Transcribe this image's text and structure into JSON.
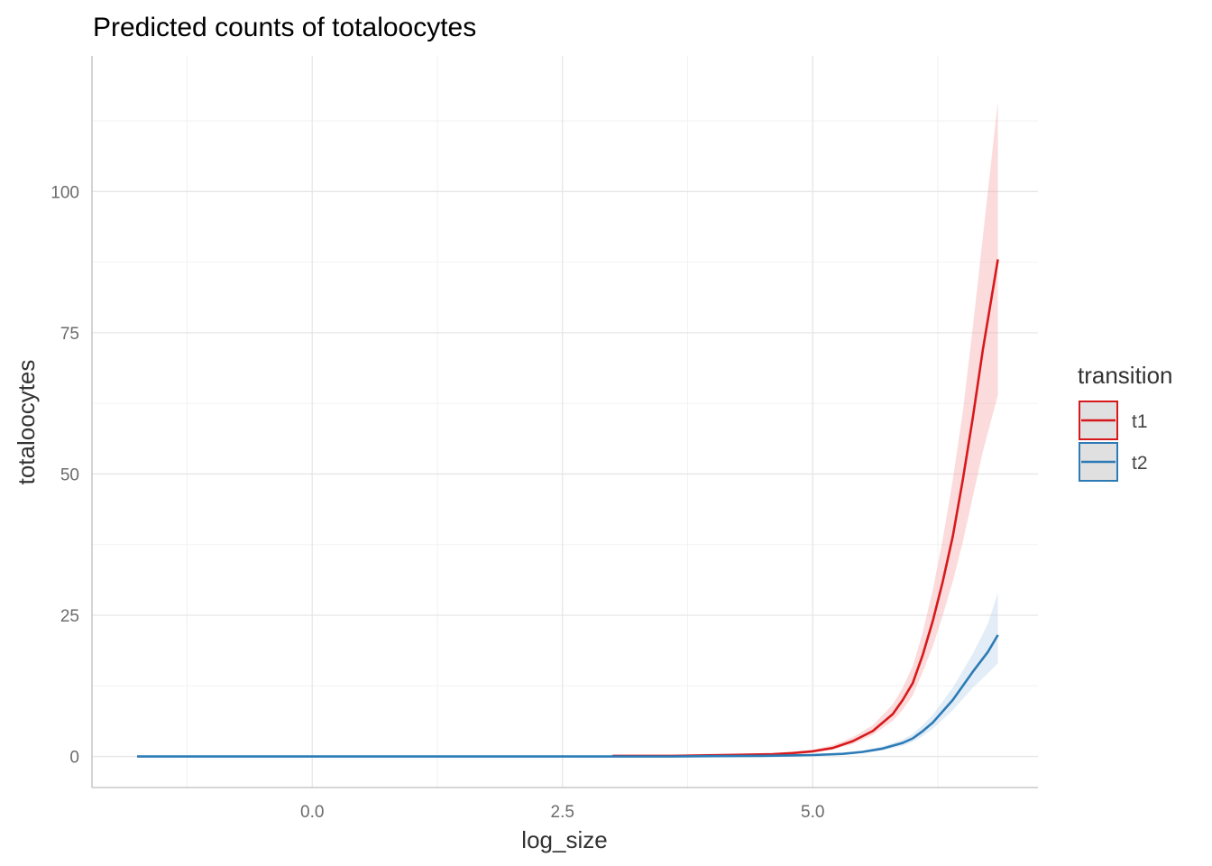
{
  "chart_data": {
    "type": "line",
    "title": "Predicted counts of totaloocytes",
    "xlabel": "log_size",
    "ylabel": "totaloocytes",
    "xlim": [
      -2.2,
      7.25
    ],
    "ylim": [
      -5.5,
      124
    ],
    "x_ticks": [
      0.0,
      2.5,
      5.0
    ],
    "x_tick_labels": [
      "0.0",
      "2.5",
      "5.0"
    ],
    "y_ticks": [
      0,
      25,
      50,
      75,
      100
    ],
    "y_tick_labels": [
      "0",
      "25",
      "50",
      "75",
      "100"
    ],
    "grid": true,
    "legend": {
      "title": "transition",
      "position": "right"
    },
    "series": [
      {
        "name": "t1",
        "color": "#d7191c",
        "ribbon_color": "#f4a6a8",
        "x": [
          3.0,
          3.6,
          4.3,
          4.6,
          4.8,
          5.0,
          5.2,
          5.4,
          5.6,
          5.8,
          5.9,
          6.0,
          6.1,
          6.2,
          6.3,
          6.4,
          6.5,
          6.6,
          6.7,
          6.85
        ],
        "y": [
          0.1,
          0.1,
          0.3,
          0.4,
          0.6,
          0.9,
          1.5,
          2.7,
          4.5,
          7.5,
          10,
          13,
          18,
          24,
          31,
          39,
          49,
          60,
          72,
          88
        ],
        "lower": [
          0.05,
          0.05,
          0.2,
          0.3,
          0.45,
          0.7,
          1.2,
          2.2,
          3.8,
          6.3,
          8.3,
          10.8,
          15,
          19.5,
          25,
          31,
          38,
          46,
          54,
          64
        ],
        "upper": [
          0.2,
          0.2,
          0.4,
          0.55,
          0.8,
          1.2,
          2.0,
          3.4,
          5.5,
          9.2,
          12.2,
          16,
          22,
          29.5,
          38.5,
          49,
          61,
          76,
          92,
          116
        ]
      },
      {
        "name": "t2",
        "color": "#2c7bb6",
        "ribbon_color": "#b9d1ea",
        "x": [
          -1.75,
          -1.0,
          0.0,
          1.0,
          2.0,
          3.0,
          3.6,
          4.0,
          4.5,
          5.0,
          5.3,
          5.5,
          5.7,
          5.9,
          6.0,
          6.1,
          6.2,
          6.4,
          6.6,
          6.75,
          6.85
        ],
        "y": [
          0,
          0,
          0,
          0,
          0,
          0,
          0,
          0.05,
          0.1,
          0.25,
          0.45,
          0.8,
          1.4,
          2.4,
          3.2,
          4.5,
          6.0,
          10,
          15,
          18.5,
          21.5
        ],
        "lower": [
          0,
          0,
          0,
          0,
          0,
          0,
          0,
          0.02,
          0.05,
          0.15,
          0.3,
          0.6,
          1.1,
          1.9,
          2.6,
          3.6,
          4.9,
          8.2,
          12.2,
          14.7,
          16.5
        ],
        "upper": [
          0.05,
          0.05,
          0.05,
          0.05,
          0.05,
          0.05,
          0.05,
          0.1,
          0.18,
          0.38,
          0.65,
          1.05,
          1.8,
          3.0,
          4.0,
          5.6,
          7.4,
          12.2,
          18.2,
          23.5,
          29
        ]
      }
    ]
  }
}
